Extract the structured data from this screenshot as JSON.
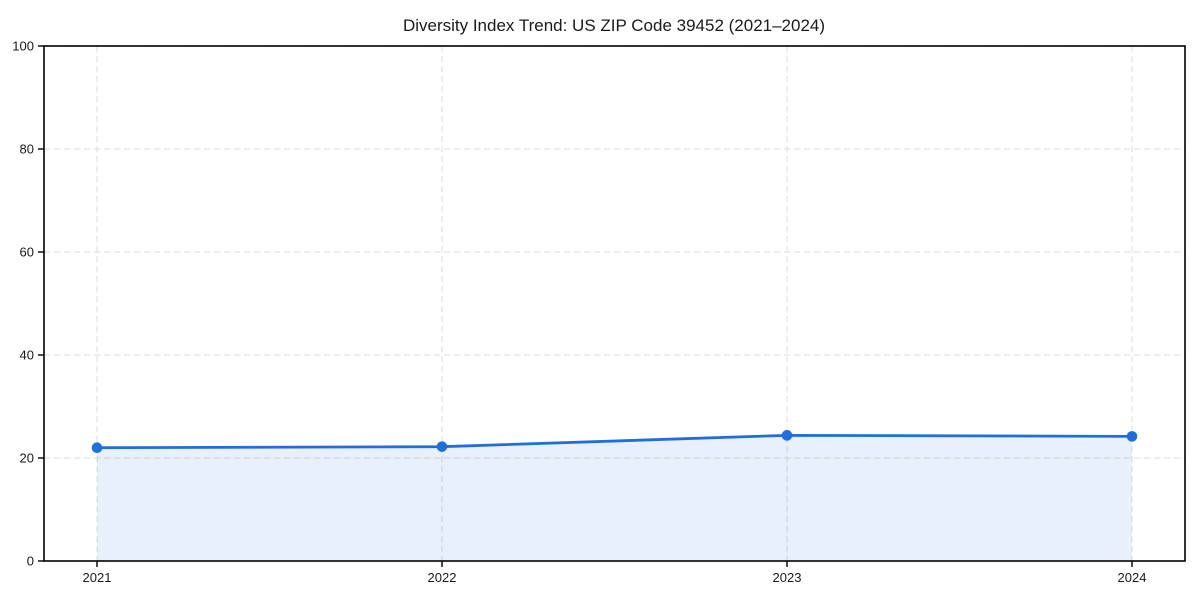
{
  "chart_data": {
    "type": "line",
    "title": "Diversity Index Trend: US ZIP Code 39452 (2021–2024)",
    "categories": [
      "2021",
      "2022",
      "2023",
      "2024"
    ],
    "series": [
      {
        "name": "Diversity Index",
        "values": [
          22.0,
          22.2,
          24.4,
          24.2
        ]
      }
    ],
    "xlabel": "",
    "ylabel": "",
    "ylim": [
      0,
      100
    ],
    "yticks": [
      0,
      20,
      40,
      60,
      80,
      100
    ],
    "grid": true,
    "grid_style": "dashed",
    "area_fill": true,
    "legend": "none",
    "markers": "circle",
    "colors": {
      "line": "#1e6fd9",
      "marker": "#1e6fd9",
      "area_fill": "rgba(30,111,217,0.10)",
      "grid": "#e2e2e2",
      "axis": "#000000",
      "text": "#1a1a1a"
    }
  }
}
